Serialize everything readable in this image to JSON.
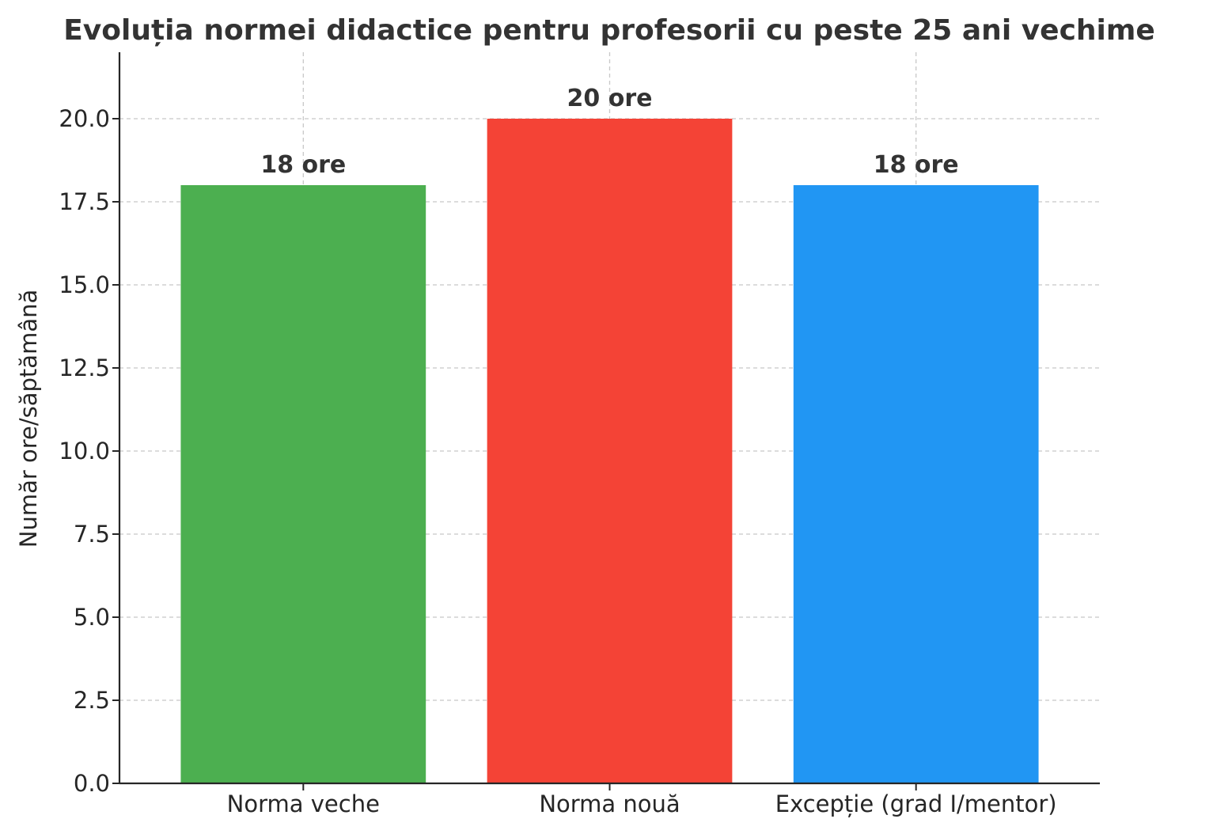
{
  "chart_data": {
    "type": "bar",
    "title": "Evoluția normei didactice pentru profesorii cu peste 25 ani vechime",
    "xlabel": "",
    "ylabel": "Număr ore/săptămână",
    "categories": [
      "Norma veche",
      "Norma nouă",
      "Excepție (grad I/mentor)"
    ],
    "values": [
      18,
      20,
      18
    ],
    "data_labels": [
      "18 ore",
      "20 ore",
      "18 ore"
    ],
    "colors": [
      "#4caf50",
      "#f44336",
      "#2196f3"
    ],
    "ylim": [
      0,
      22
    ],
    "yticks": [
      0,
      2.5,
      5,
      7.5,
      10,
      12.5,
      15,
      17.5,
      20
    ],
    "ytick_labels": [
      "0.0",
      "2.5",
      "5.0",
      "7.5",
      "10.0",
      "12.5",
      "15.0",
      "17.5",
      "20.0"
    ],
    "grid": true,
    "legend": "none"
  }
}
